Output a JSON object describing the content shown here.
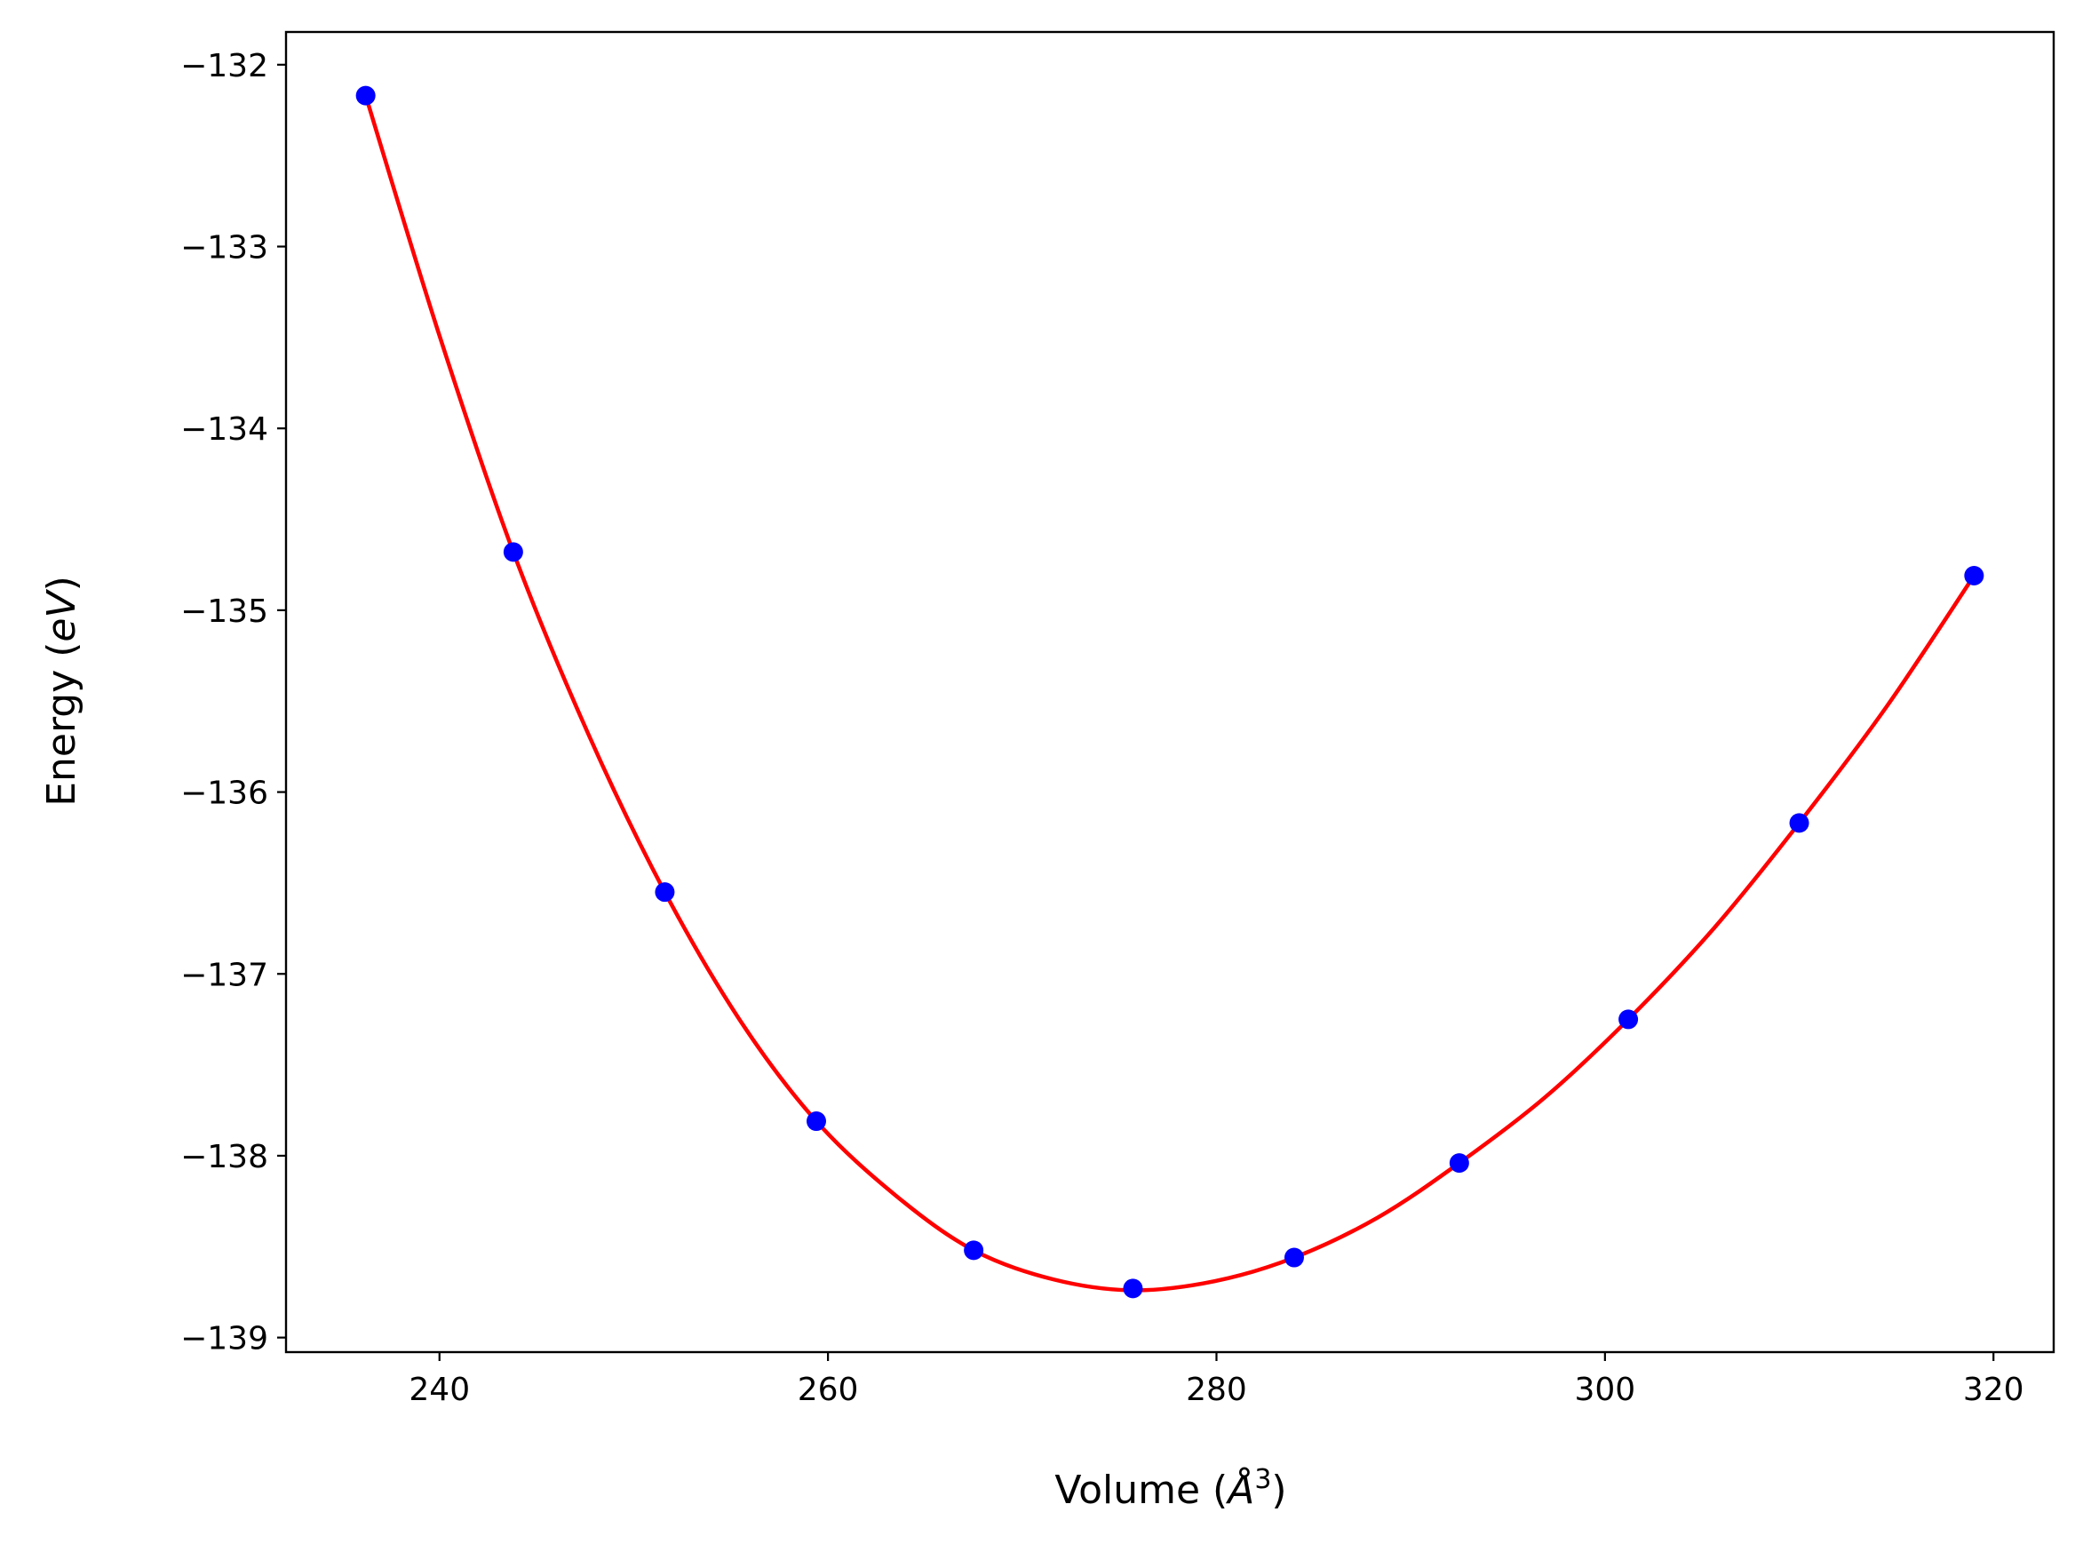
{
  "chart_data": {
    "type": "scatter",
    "title": "",
    "xlabel": "Volume (Å³)",
    "xlabel_parts": {
      "prefix": "Volume (",
      "symbol": "Å",
      "power": "3",
      "suffix": ")"
    },
    "ylabel": "Energy (eV)",
    "ylabel_parts": {
      "prefix": "Energy (",
      "symbol": "eV",
      "suffix": ")"
    },
    "xlim": [
      232.1,
      323.1
    ],
    "ylim": [
      -139.08,
      -131.82
    ],
    "xticks": [
      240,
      260,
      280,
      300,
      320
    ],
    "xtick_labels": [
      "240",
      "260",
      "280",
      "300",
      "320"
    ],
    "yticks": [
      -132,
      -133,
      -134,
      -135,
      -136,
      -137,
      -138,
      -139
    ],
    "ytick_labels": [
      "−132",
      "−133",
      "−134",
      "−135",
      "−136",
      "−137",
      "−138",
      "−139"
    ],
    "grid": false,
    "series": [
      {
        "kind": "markers",
        "color": "#0000ff",
        "x": [
          236.2,
          243.8,
          251.6,
          259.4,
          267.5,
          275.7,
          284.0,
          292.5,
          301.2,
          310.0,
          319.0
        ],
        "y": [
          -132.17,
          -134.68,
          -136.55,
          -137.81,
          -138.52,
          -138.73,
          -138.56,
          -138.04,
          -137.25,
          -136.17,
          -134.81
        ]
      },
      {
        "kind": "fit-line",
        "color": "#ff0000",
        "x": [
          236.2,
          240.0,
          243.8,
          247.7,
          251.6,
          255.5,
          259.4,
          263.5,
          267.5,
          271.6,
          275.7,
          279.9,
          284.0,
          288.3,
          292.5,
          296.9,
          301.2,
          305.6,
          310.0,
          314.5,
          319.0
        ],
        "y": [
          -132.17,
          -133.49,
          -134.68,
          -135.69,
          -136.55,
          -137.26,
          -137.81,
          -138.22,
          -138.52,
          -138.68,
          -138.74,
          -138.69,
          -138.56,
          -138.34,
          -138.04,
          -137.68,
          -137.25,
          -136.75,
          -136.17,
          -135.53,
          -134.81
        ]
      }
    ]
  }
}
